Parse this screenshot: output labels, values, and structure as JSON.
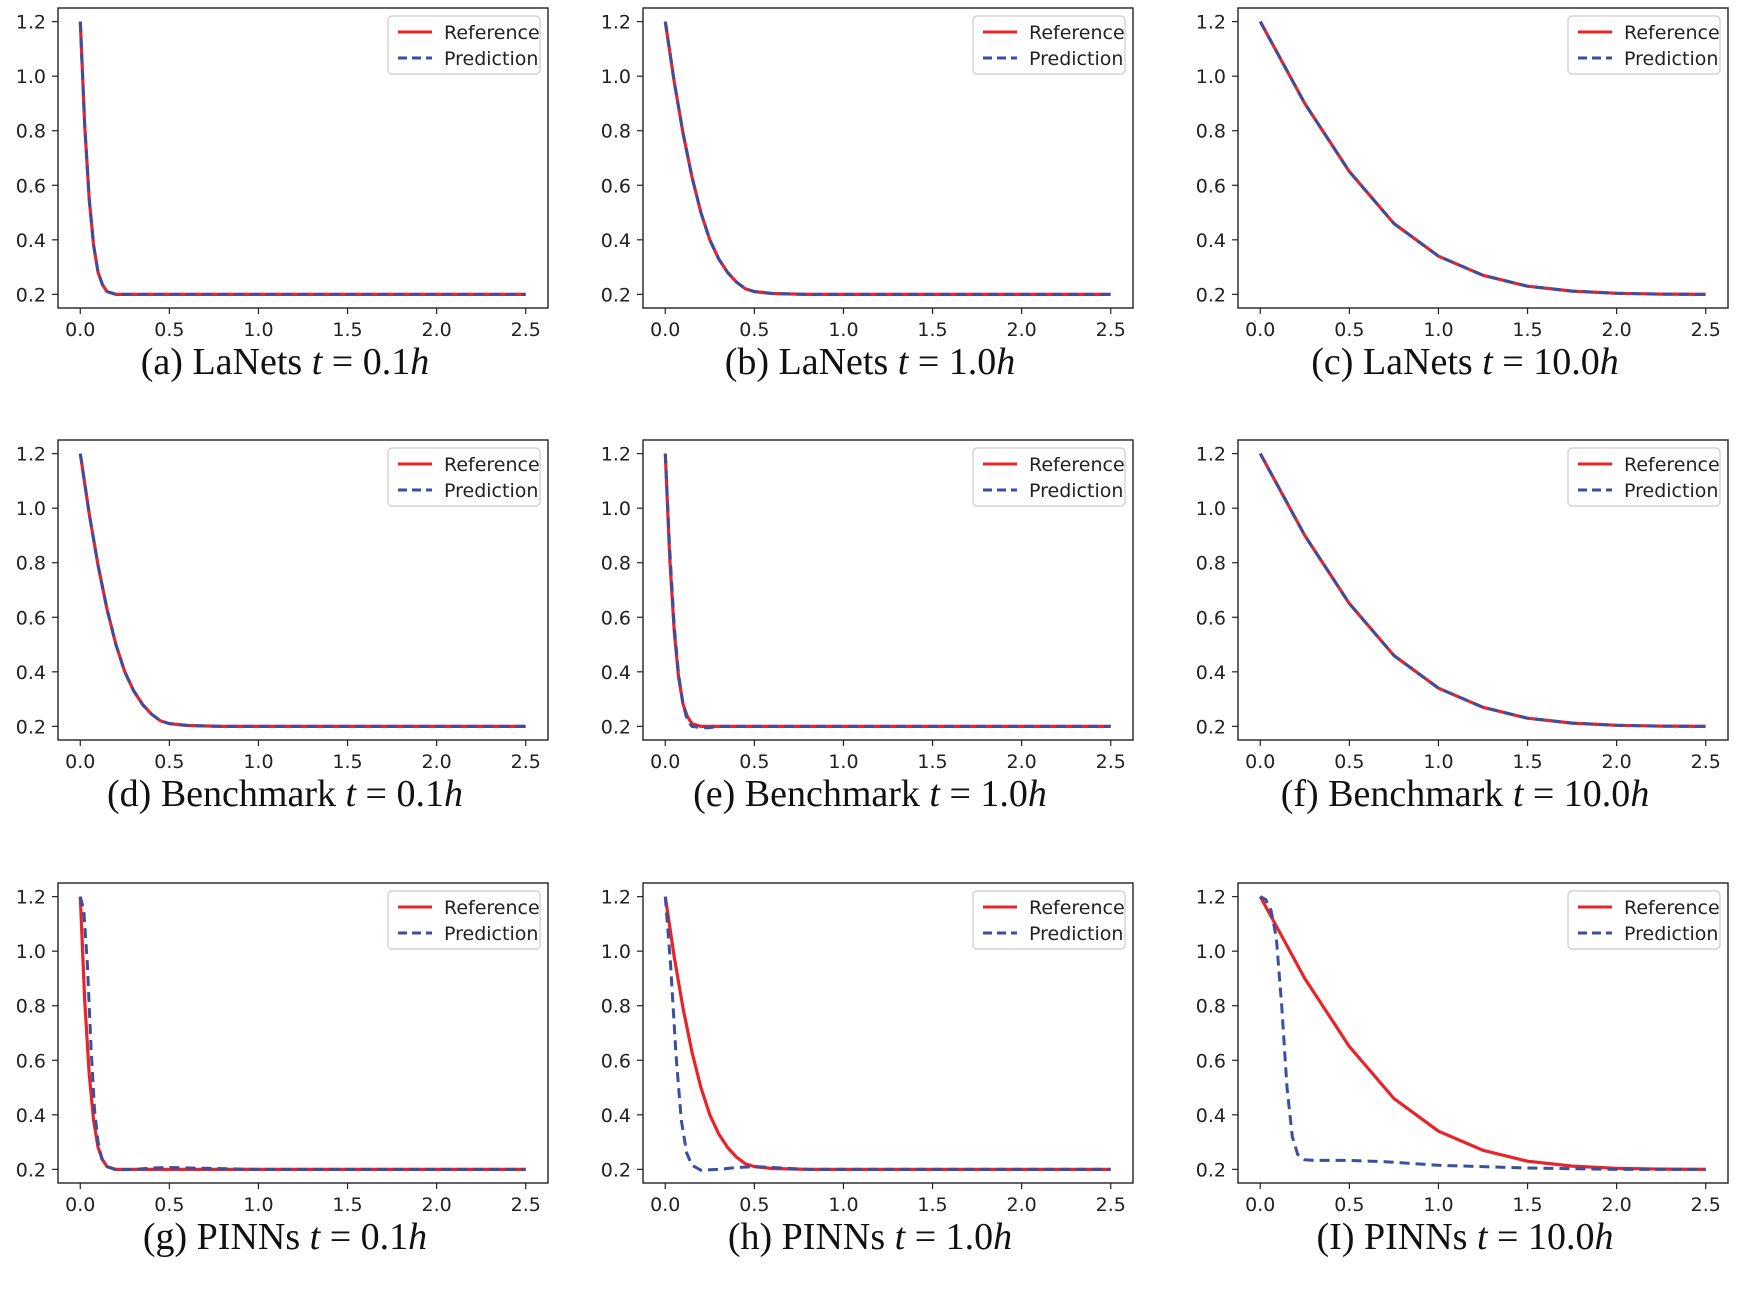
{
  "colors": {
    "reference": "#e8232a",
    "prediction": "#3a4fa0",
    "axis": "#222222"
  },
  "legend_labels": [
    "Reference",
    "Prediction"
  ],
  "chart_data": [
    {
      "type": "line",
      "panel": "a",
      "caption": {
        "prefix": "(a) LaNets ",
        "var": "t",
        "eq": " = 0.1",
        "unit": "h"
      },
      "xlim": [
        0,
        2.5
      ],
      "ylim": [
        0.2,
        1.2
      ],
      "xticks": [
        "0.0",
        "0.5",
        "1.0",
        "1.5",
        "2.0",
        "2.5"
      ],
      "yticks": [
        "0.2",
        "0.4",
        "0.6",
        "0.8",
        "1.0",
        "1.2"
      ],
      "legend_position": "top-right",
      "series": [
        {
          "name": "Reference",
          "style": "solid",
          "x": [
            0,
            0.025,
            0.05,
            0.075,
            0.1,
            0.125,
            0.15,
            0.2,
            0.3,
            0.5,
            1.0,
            1.5,
            2.0,
            2.5
          ],
          "y": [
            1.2,
            0.82,
            0.55,
            0.38,
            0.28,
            0.235,
            0.21,
            0.2,
            0.2,
            0.2,
            0.2,
            0.2,
            0.2,
            0.2
          ]
        },
        {
          "name": "Prediction",
          "style": "dashed",
          "x": [
            0,
            0.025,
            0.05,
            0.075,
            0.1,
            0.125,
            0.15,
            0.2,
            0.3,
            0.5,
            1.0,
            1.5,
            2.0,
            2.5
          ],
          "y": [
            1.2,
            0.82,
            0.55,
            0.38,
            0.28,
            0.235,
            0.21,
            0.2,
            0.2,
            0.2,
            0.2,
            0.2,
            0.2,
            0.2
          ]
        }
      ]
    },
    {
      "type": "line",
      "panel": "b",
      "caption": {
        "prefix": "(b) LaNets ",
        "var": "t",
        "eq": " = 1.0",
        "unit": "h"
      },
      "xlim": [
        0,
        2.5
      ],
      "ylim": [
        0.2,
        1.2
      ],
      "xticks": [
        "0.0",
        "0.5",
        "1.0",
        "1.5",
        "2.0",
        "2.5"
      ],
      "yticks": [
        "0.2",
        "0.4",
        "0.6",
        "0.8",
        "1.0",
        "1.2"
      ],
      "legend_position": "top-right",
      "series": [
        {
          "name": "Reference",
          "style": "solid",
          "x": [
            0,
            0.05,
            0.1,
            0.15,
            0.2,
            0.25,
            0.3,
            0.35,
            0.4,
            0.45,
            0.5,
            0.6,
            0.8,
            1.0,
            1.5,
            2.0,
            2.5
          ],
          "y": [
            1.2,
            0.98,
            0.79,
            0.63,
            0.5,
            0.4,
            0.33,
            0.28,
            0.245,
            0.22,
            0.21,
            0.203,
            0.2,
            0.2,
            0.2,
            0.2,
            0.2
          ]
        },
        {
          "name": "Prediction",
          "style": "dashed",
          "x": [
            0,
            0.05,
            0.1,
            0.15,
            0.2,
            0.25,
            0.3,
            0.35,
            0.4,
            0.45,
            0.5,
            0.6,
            0.8,
            1.0,
            1.5,
            2.0,
            2.5
          ],
          "y": [
            1.2,
            0.98,
            0.79,
            0.63,
            0.5,
            0.4,
            0.33,
            0.28,
            0.245,
            0.22,
            0.21,
            0.203,
            0.2,
            0.2,
            0.2,
            0.2,
            0.2
          ]
        }
      ]
    },
    {
      "type": "line",
      "panel": "c",
      "caption": {
        "prefix": "(c) LaNets ",
        "var": "t",
        "eq": " = 10.0",
        "unit": "h"
      },
      "xlim": [
        0,
        2.5
      ],
      "ylim": [
        0.2,
        1.2
      ],
      "xticks": [
        "0.0",
        "0.5",
        "1.0",
        "1.5",
        "2.0",
        "2.5"
      ],
      "yticks": [
        "0.2",
        "0.4",
        "0.6",
        "0.8",
        "1.0",
        "1.2"
      ],
      "legend_position": "top-right",
      "series": [
        {
          "name": "Reference",
          "style": "solid",
          "x": [
            0,
            0.25,
            0.5,
            0.75,
            1.0,
            1.25,
            1.5,
            1.75,
            2.0,
            2.25,
            2.5
          ],
          "y": [
            1.2,
            0.9,
            0.65,
            0.46,
            0.34,
            0.27,
            0.23,
            0.212,
            0.204,
            0.201,
            0.2
          ]
        },
        {
          "name": "Prediction",
          "style": "dashed",
          "x": [
            0,
            0.25,
            0.5,
            0.75,
            1.0,
            1.25,
            1.5,
            1.75,
            2.0,
            2.25,
            2.5
          ],
          "y": [
            1.2,
            0.9,
            0.65,
            0.46,
            0.34,
            0.27,
            0.23,
            0.212,
            0.204,
            0.201,
            0.2
          ]
        }
      ]
    },
    {
      "type": "line",
      "panel": "d",
      "caption": {
        "prefix": "(d) Benchmark ",
        "var": "t",
        "eq": " = 0.1",
        "unit": "h"
      },
      "xlim": [
        0,
        2.5
      ],
      "ylim": [
        0.2,
        1.2
      ],
      "xticks": [
        "0.0",
        "0.5",
        "1.0",
        "1.5",
        "2.0",
        "2.5"
      ],
      "yticks": [
        "0.2",
        "0.4",
        "0.6",
        "0.8",
        "1.0",
        "1.2"
      ],
      "legend_position": "top-right",
      "series": [
        {
          "name": "Reference",
          "style": "solid",
          "x": [
            0,
            0.05,
            0.1,
            0.15,
            0.2,
            0.25,
            0.3,
            0.35,
            0.4,
            0.45,
            0.5,
            0.6,
            0.8,
            1.0,
            1.5,
            2.0,
            2.5
          ],
          "y": [
            1.2,
            0.98,
            0.79,
            0.63,
            0.5,
            0.4,
            0.33,
            0.28,
            0.245,
            0.22,
            0.21,
            0.203,
            0.2,
            0.2,
            0.2,
            0.2,
            0.2
          ]
        },
        {
          "name": "Prediction",
          "style": "dashed",
          "x": [
            0,
            0.05,
            0.1,
            0.15,
            0.2,
            0.25,
            0.3,
            0.35,
            0.4,
            0.45,
            0.5,
            0.6,
            0.8,
            1.0,
            1.5,
            2.0,
            2.5
          ],
          "y": [
            1.2,
            0.98,
            0.79,
            0.63,
            0.5,
            0.4,
            0.33,
            0.28,
            0.245,
            0.22,
            0.21,
            0.203,
            0.2,
            0.2,
            0.2,
            0.2,
            0.2
          ]
        }
      ]
    },
    {
      "type": "line",
      "panel": "e",
      "caption": {
        "prefix": "(e) Benchmark ",
        "var": "t",
        "eq": " = 1.0",
        "unit": "h"
      },
      "xlim": [
        0,
        2.5
      ],
      "ylim": [
        0.2,
        1.2
      ],
      "xticks": [
        "0.0",
        "0.5",
        "1.0",
        "1.5",
        "2.0",
        "2.5"
      ],
      "yticks": [
        "0.2",
        "0.4",
        "0.6",
        "0.8",
        "1.0",
        "1.2"
      ],
      "legend_position": "top-right",
      "series": [
        {
          "name": "Reference",
          "style": "solid",
          "x": [
            0,
            0.025,
            0.05,
            0.075,
            0.1,
            0.125,
            0.15,
            0.2,
            0.3,
            0.5,
            1.0,
            1.5,
            2.0,
            2.5
          ],
          "y": [
            1.2,
            0.82,
            0.55,
            0.38,
            0.28,
            0.235,
            0.21,
            0.2,
            0.2,
            0.2,
            0.2,
            0.2,
            0.2,
            0.2
          ]
        },
        {
          "name": "Prediction",
          "style": "dashed",
          "x": [
            0,
            0.025,
            0.05,
            0.075,
            0.1,
            0.125,
            0.15,
            0.2,
            0.25,
            0.3,
            0.5,
            1.0,
            1.5,
            2.0,
            2.5
          ],
          "y": [
            1.2,
            0.85,
            0.57,
            0.39,
            0.28,
            0.22,
            0.2,
            0.195,
            0.195,
            0.2,
            0.2,
            0.2,
            0.2,
            0.2,
            0.2
          ]
        }
      ]
    },
    {
      "type": "line",
      "panel": "f",
      "caption": {
        "prefix": "(f) Benchmark ",
        "var": "t",
        "eq": " = 10.0",
        "unit": "h"
      },
      "xlim": [
        0,
        2.5
      ],
      "ylim": [
        0.2,
        1.2
      ],
      "xticks": [
        "0.0",
        "0.5",
        "1.0",
        "1.5",
        "2.0",
        "2.5"
      ],
      "yticks": [
        "0.2",
        "0.4",
        "0.6",
        "0.8",
        "1.0",
        "1.2"
      ],
      "legend_position": "top-right",
      "series": [
        {
          "name": "Reference",
          "style": "solid",
          "x": [
            0,
            0.25,
            0.5,
            0.75,
            1.0,
            1.25,
            1.5,
            1.75,
            2.0,
            2.25,
            2.5
          ],
          "y": [
            1.2,
            0.9,
            0.65,
            0.46,
            0.34,
            0.27,
            0.23,
            0.212,
            0.204,
            0.201,
            0.2
          ]
        },
        {
          "name": "Prediction",
          "style": "dashed",
          "x": [
            0,
            0.25,
            0.5,
            0.75,
            1.0,
            1.25,
            1.5,
            1.75,
            2.0,
            2.25,
            2.5
          ],
          "y": [
            1.2,
            0.9,
            0.65,
            0.46,
            0.34,
            0.27,
            0.23,
            0.212,
            0.204,
            0.201,
            0.2
          ]
        }
      ]
    },
    {
      "type": "line",
      "panel": "g",
      "caption": {
        "prefix": "(g) PINNs ",
        "var": "t",
        "eq": " = 0.1",
        "unit": "h"
      },
      "xlim": [
        0,
        2.5
      ],
      "ylim": [
        0.2,
        1.2
      ],
      "xticks": [
        "0.0",
        "0.5",
        "1.0",
        "1.5",
        "2.0",
        "2.5"
      ],
      "yticks": [
        "0.2",
        "0.4",
        "0.6",
        "0.8",
        "1.0",
        "1.2"
      ],
      "legend_position": "top-right",
      "series": [
        {
          "name": "Reference",
          "style": "solid",
          "x": [
            0,
            0.025,
            0.05,
            0.075,
            0.1,
            0.125,
            0.15,
            0.2,
            0.3,
            0.5,
            1.0,
            1.5,
            2.0,
            2.5
          ],
          "y": [
            1.2,
            0.82,
            0.55,
            0.38,
            0.28,
            0.235,
            0.21,
            0.2,
            0.2,
            0.2,
            0.2,
            0.2,
            0.2,
            0.2
          ]
        },
        {
          "name": "Prediction",
          "style": "dashed",
          "x": [
            0,
            0.02,
            0.04,
            0.06,
            0.08,
            0.1,
            0.12,
            0.15,
            0.2,
            0.3,
            0.4,
            0.5,
            0.7,
            1.0,
            1.5,
            2.0,
            2.5
          ],
          "y": [
            1.2,
            1.15,
            0.95,
            0.65,
            0.42,
            0.3,
            0.24,
            0.21,
            0.198,
            0.2,
            0.205,
            0.207,
            0.204,
            0.2,
            0.2,
            0.2,
            0.2
          ]
        }
      ]
    },
    {
      "type": "line",
      "panel": "h",
      "caption": {
        "prefix": "(h) PINNs ",
        "var": "t",
        "eq": " = 1.0",
        "unit": "h"
      },
      "xlim": [
        0,
        2.5
      ],
      "ylim": [
        0.2,
        1.2
      ],
      "xticks": [
        "0.0",
        "0.5",
        "1.0",
        "1.5",
        "2.0",
        "2.5"
      ],
      "yticks": [
        "0.2",
        "0.4",
        "0.6",
        "0.8",
        "1.0",
        "1.2"
      ],
      "legend_position": "top-right",
      "series": [
        {
          "name": "Reference",
          "style": "solid",
          "x": [
            0,
            0.05,
            0.1,
            0.15,
            0.2,
            0.25,
            0.3,
            0.35,
            0.4,
            0.45,
            0.5,
            0.6,
            0.8,
            1.0,
            1.5,
            2.0,
            2.5
          ],
          "y": [
            1.2,
            0.98,
            0.79,
            0.63,
            0.5,
            0.4,
            0.33,
            0.28,
            0.245,
            0.22,
            0.21,
            0.203,
            0.2,
            0.2,
            0.2,
            0.2,
            0.2
          ]
        },
        {
          "name": "Prediction",
          "style": "dashed",
          "x": [
            0,
            0.03,
            0.06,
            0.09,
            0.12,
            0.15,
            0.2,
            0.3,
            0.4,
            0.5,
            0.6,
            0.8,
            1.0,
            1.5,
            2.0,
            2.5
          ],
          "y": [
            1.2,
            0.95,
            0.62,
            0.38,
            0.26,
            0.215,
            0.197,
            0.2,
            0.207,
            0.21,
            0.207,
            0.2,
            0.2,
            0.2,
            0.2,
            0.2
          ]
        }
      ]
    },
    {
      "type": "line",
      "panel": "i",
      "caption": {
        "prefix": "(I) PINNs ",
        "var": "t",
        "eq": " = 10.0",
        "unit": "h"
      },
      "xlim": [
        0,
        2.5
      ],
      "ylim": [
        0.2,
        1.2
      ],
      "xticks": [
        "0.0",
        "0.5",
        "1.0",
        "1.5",
        "2.0",
        "2.5"
      ],
      "yticks": [
        "0.2",
        "0.4",
        "0.6",
        "0.8",
        "1.0",
        "1.2"
      ],
      "legend_position": "top-right",
      "series": [
        {
          "name": "Reference",
          "style": "solid",
          "x": [
            0,
            0.25,
            0.5,
            0.75,
            1.0,
            1.25,
            1.5,
            1.75,
            2.0,
            2.25,
            2.5
          ],
          "y": [
            1.2,
            0.9,
            0.65,
            0.46,
            0.34,
            0.27,
            0.23,
            0.212,
            0.204,
            0.201,
            0.2
          ]
        },
        {
          "name": "Prediction",
          "style": "dashed",
          "x": [
            0,
            0.03,
            0.06,
            0.09,
            0.12,
            0.15,
            0.18,
            0.21,
            0.25,
            0.3,
            0.5,
            0.7,
            1.0,
            1.5,
            2.0,
            2.5
          ],
          "y": [
            1.2,
            1.19,
            1.15,
            1.05,
            0.8,
            0.5,
            0.32,
            0.255,
            0.235,
            0.233,
            0.233,
            0.228,
            0.215,
            0.205,
            0.2,
            0.2
          ]
        }
      ]
    }
  ]
}
